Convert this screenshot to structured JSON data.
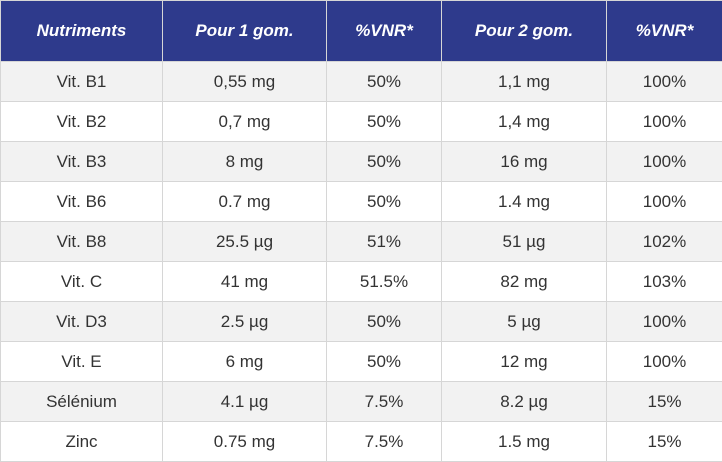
{
  "table": {
    "headers": [
      "Nutriments",
      "Pour 1 gom.",
      "%VNR*",
      "Pour 2 gom.",
      "%VNR*"
    ],
    "rows": [
      [
        "Vit. B1",
        "0,55 mg",
        "50%",
        "1,1 mg",
        "100%"
      ],
      [
        "Vit. B2",
        "0,7 mg",
        "50%",
        "1,4 mg",
        "100%"
      ],
      [
        "Vit. B3",
        "8 mg",
        "50%",
        "16 mg",
        "100%"
      ],
      [
        "Vit. B6",
        "0.7 mg",
        "50%",
        "1.4 mg",
        "100%"
      ],
      [
        "Vit. B8",
        "25.5 µg",
        "51%",
        "51 µg",
        "102%"
      ],
      [
        "Vit. C",
        "41 mg",
        "51.5%",
        "82 mg",
        "103%"
      ],
      [
        "Vit. D3",
        "2.5 µg",
        "50%",
        "5 µg",
        "100%"
      ],
      [
        "Vit. E",
        "6 mg",
        "50%",
        "12 mg",
        "100%"
      ],
      [
        "Sélénium",
        "4.1 µg",
        "7.5%",
        "8.2 µg",
        "15%"
      ],
      [
        "Zinc",
        "0.75 mg",
        "7.5%",
        "1.5 mg",
        "15%"
      ]
    ]
  },
  "colors": {
    "header_background": "#2e3a8c",
    "header_text": "#ffffff",
    "row_alt_background": "#f2f2f2",
    "row_background": "#ffffff",
    "border": "#d6d6d6",
    "cell_text": "#333333"
  }
}
